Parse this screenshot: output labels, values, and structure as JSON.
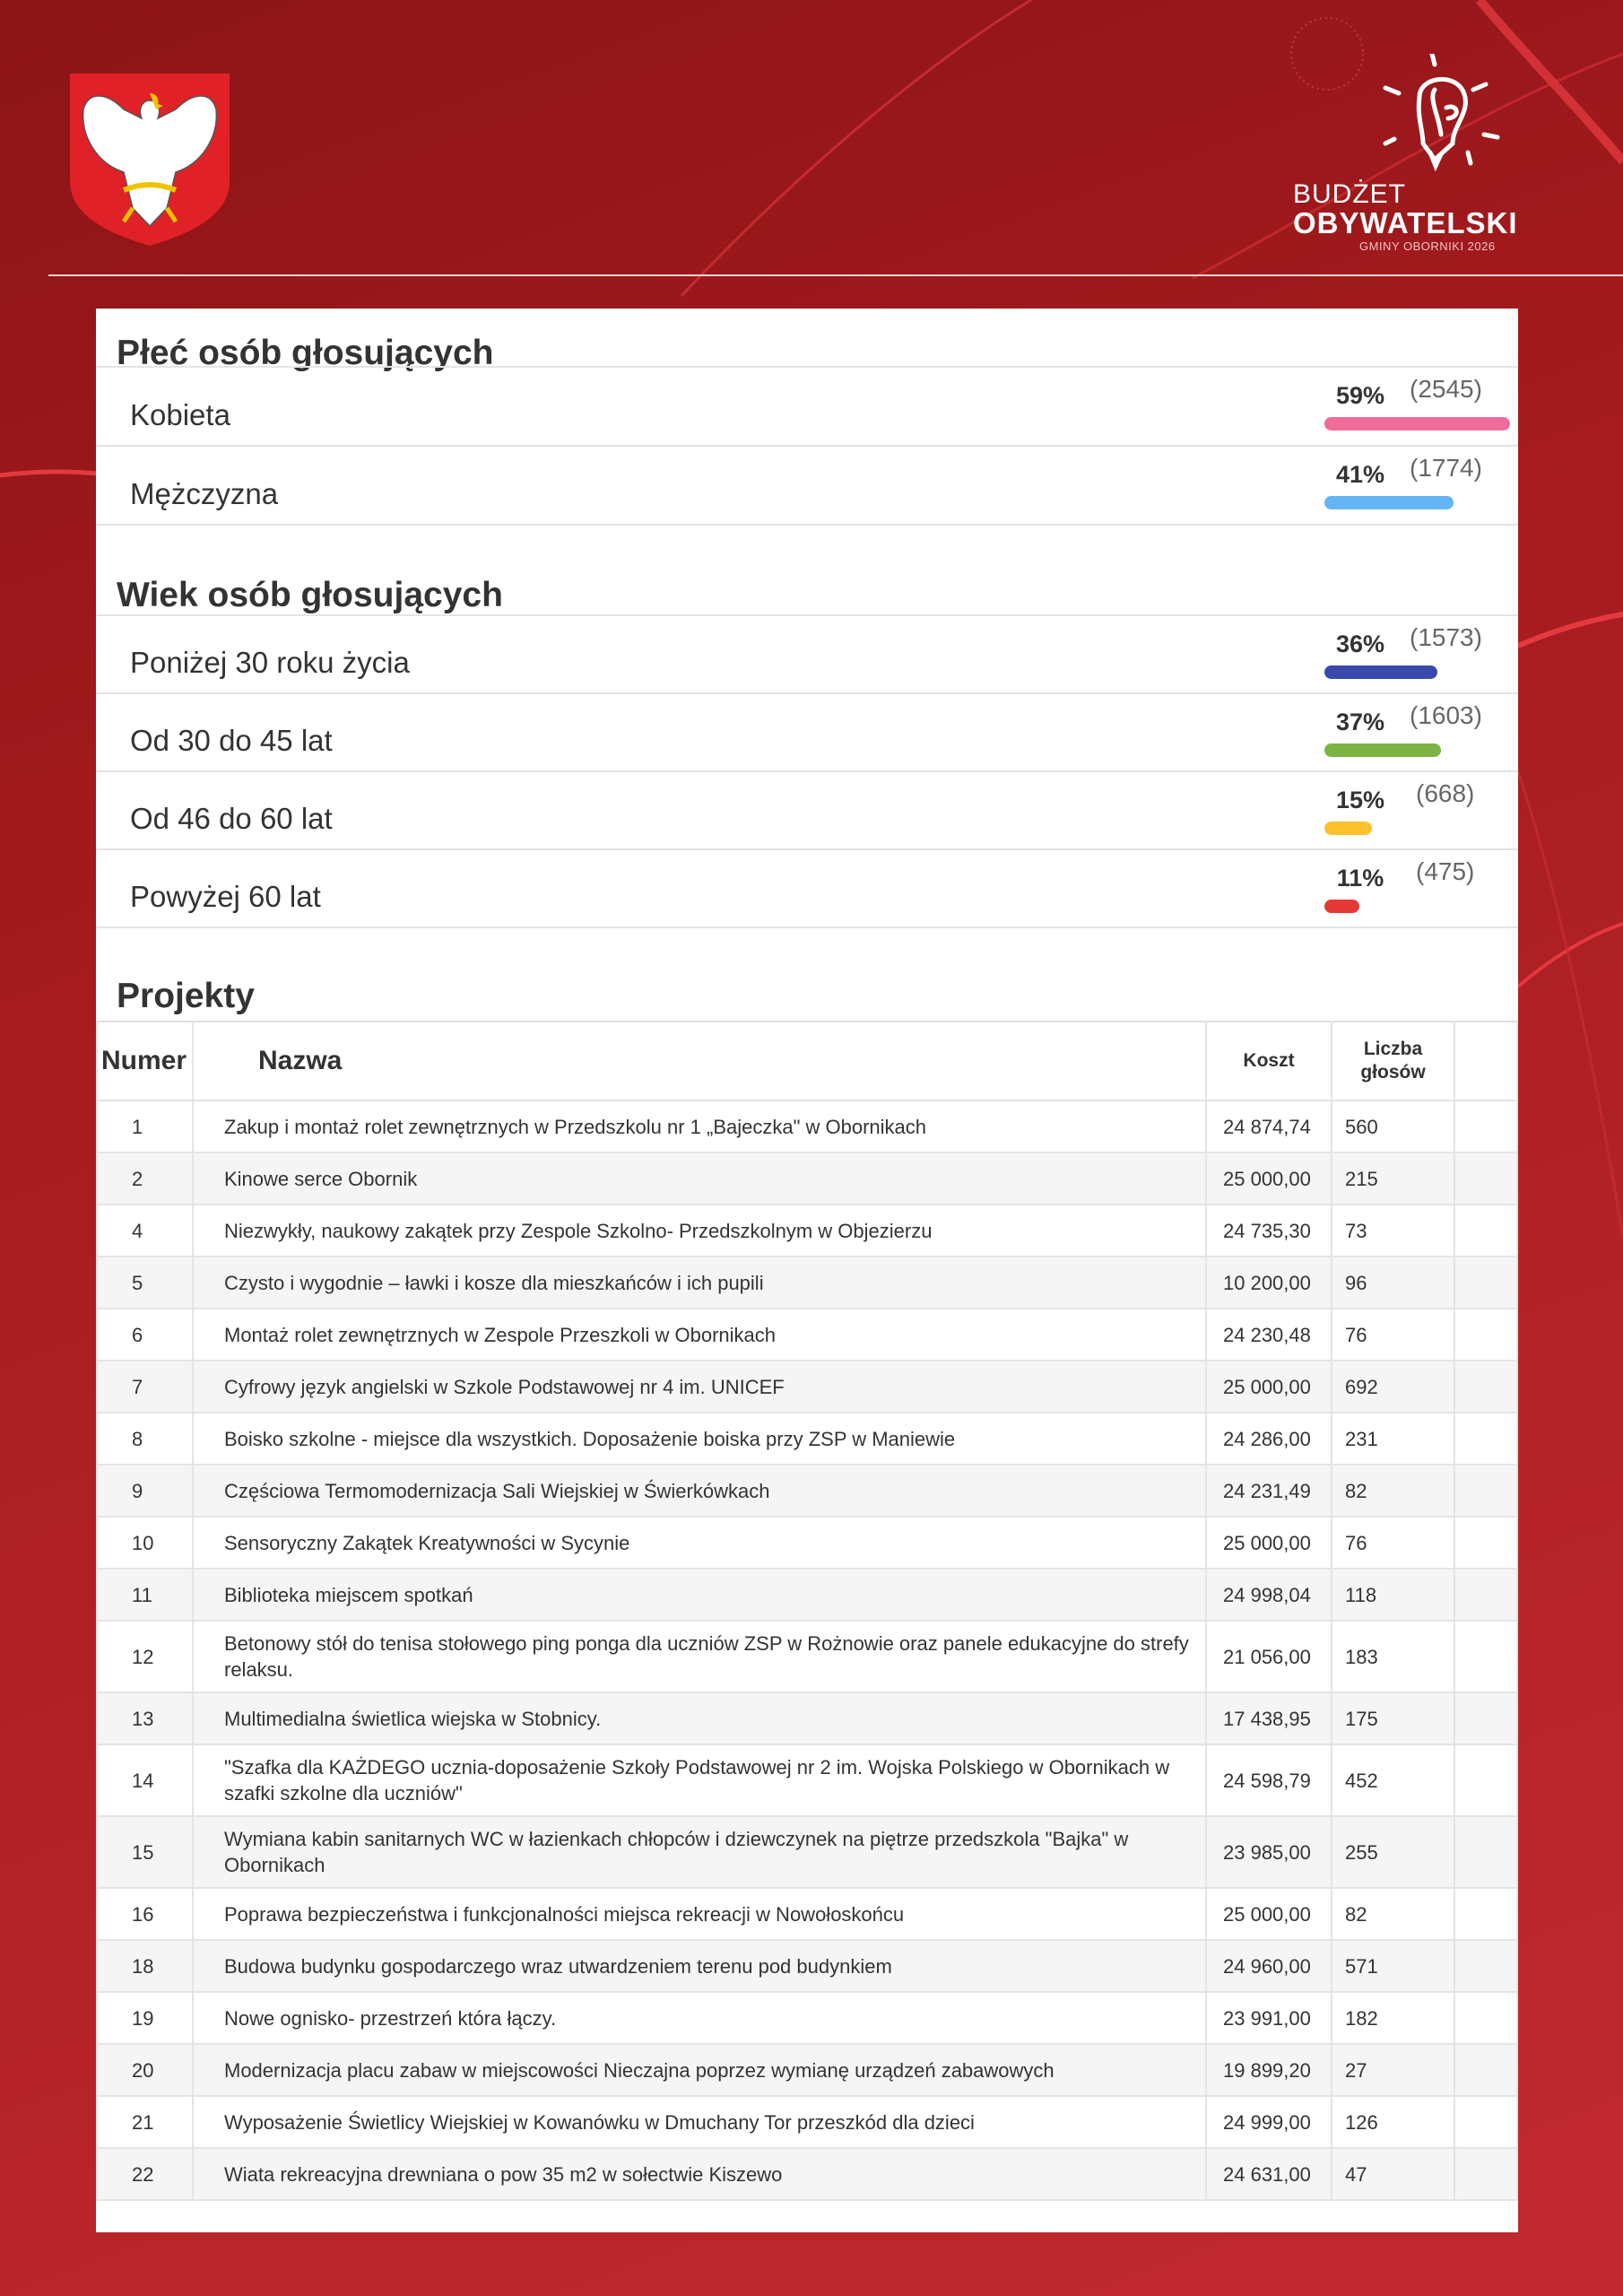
{
  "logo": {
    "line1": "BUDŻET",
    "line2": "OBYWATELSKI",
    "line3": "GMINY OBORNIKI 2026"
  },
  "colors": {
    "background": "#a51b1f",
    "women": "#ef6b9a",
    "men": "#64b5f6",
    "age_under30": "#3949ab",
    "age_30_45": "#7cb342",
    "age_46_60": "#fbc02d",
    "age_over60": "#e53935"
  },
  "gender": {
    "title": "Płeć osób głosujących",
    "rows": [
      {
        "label": "Kobieta",
        "percent": "59%",
        "count": "(2545)",
        "value": 59
      },
      {
        "label": "Mężczyzna",
        "percent": "41%",
        "count": "(1774)",
        "value": 41
      }
    ]
  },
  "age": {
    "title": "Wiek osób głosujących",
    "rows": [
      {
        "label": "Poniżej 30 roku życia",
        "percent": "36%",
        "count": "(1573)",
        "value": 36
      },
      {
        "label": "Od 30 do 45 lat",
        "percent": "37%",
        "count": "(1603)",
        "value": 37
      },
      {
        "label": "Od 46 do 60 lat",
        "percent": "15%",
        "count": "(668)",
        "value": 15
      },
      {
        "label": "Powyżej 60 lat",
        "percent": "11%",
        "count": "(475)",
        "value": 11
      }
    ]
  },
  "projects": {
    "title": "Projekty",
    "headers": {
      "number": "Numer",
      "name": "Nazwa",
      "cost": "Koszt",
      "votes": "Liczba głosów"
    },
    "rows": [
      [
        "1",
        "Zakup i montaż rolet zewnętrznych w Przedszkolu nr 1 „Bajeczka\" w Obornikach",
        "24 874,74",
        "560"
      ],
      [
        "2",
        "Kinowe serce Obornik",
        "25 000,00",
        "215"
      ],
      [
        "4",
        "Niezwykły, naukowy zakątek przy Zespole Szkolno- Przedszkolnym w Objezierzu",
        "24 735,30",
        "73"
      ],
      [
        "5",
        "Czysto i wygodnie – ławki i kosze dla mieszkańców i ich pupili",
        "10 200,00",
        "96"
      ],
      [
        "6",
        "Montaż rolet zewnętrznych w Zespole Przeszkoli w Obornikach",
        "24 230,48",
        "76"
      ],
      [
        "7",
        "Cyfrowy język angielski w Szkole Podstawowej nr 4 im. UNICEF",
        "25 000,00",
        "692"
      ],
      [
        "8",
        "Boisko szkolne - miejsce dla wszystkich. Doposażenie boiska przy ZSP w Maniewie",
        "24 286,00",
        "231"
      ],
      [
        "9",
        "Częściowa Termomodernizacja Sali Wiejskiej w Świerkówkach",
        "24 231,49",
        "82"
      ],
      [
        "10",
        "Sensoryczny Zakątek Kreatywności w Sycynie",
        "25 000,00",
        "76"
      ],
      [
        "11",
        "Biblioteka miejscem spotkań",
        "24 998,04",
        "118"
      ],
      [
        "12",
        "Betonowy stół do tenisa stołowego ping ponga dla uczniów ZSP w Rożnowie oraz panele edukacyjne do strefy relaksu.",
        "21 056,00",
        "183"
      ],
      [
        "13",
        "Multimedialna świetlica wiejska w Stobnicy.",
        "17 438,95",
        "175"
      ],
      [
        "14",
        "\"Szafka dla KAŻDEGO ucznia-doposażenie Szkoły Podstawowej nr 2 im. Wojska Polskiego w Obornikach w szafki szkolne dla uczniów\"",
        "24 598,79",
        "452"
      ],
      [
        "15",
        "Wymiana kabin sanitarnych WC w łazienkach chłopców i dziewczynek na piętrze przedszkola \"Bajka\" w Obornikach",
        "23 985,00",
        "255"
      ],
      [
        "16",
        "Poprawa bezpieczeństwa i funkcjonalności miejsca rekreacji w Nowołoskońcu",
        "25 000,00",
        "82"
      ],
      [
        "18",
        "Budowa budynku gospodarczego wraz utwardzeniem terenu pod budynkiem",
        "24 960,00",
        "571"
      ],
      [
        "19",
        "Nowe ognisko- przestrzeń która łączy.",
        "23 991,00",
        "182"
      ],
      [
        "20",
        "Modernizacja placu zabaw w miejscowości Nieczajna poprzez wymianę urządzeń zabawowych",
        "19 899,20",
        "27"
      ],
      [
        "21",
        "Wyposażenie Świetlicy Wiejskiej w Kowanówku w Dmuchany Tor przeszkód dla dzieci",
        "24 999,00",
        "126"
      ],
      [
        "22",
        "Wiata rekreacyjna drewniana o pow 35 m2 w sołectwie Kiszewo",
        "24 631,00",
        "47"
      ]
    ]
  }
}
